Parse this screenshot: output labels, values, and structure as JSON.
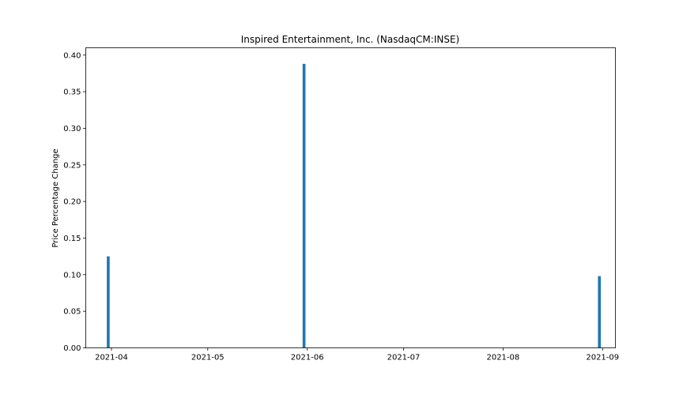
{
  "chart_data": {
    "type": "bar",
    "title": "Inspired Entertainment, Inc. (NasdaqCM:INSE)",
    "xlabel": "",
    "ylabel": "Price Percentage Change",
    "x_axis_type": "date",
    "xlim": [
      "2021-03-24",
      "2021-09-05"
    ],
    "x_ticks": [
      "2021-04-01",
      "2021-05-01",
      "2021-06-01",
      "2021-07-01",
      "2021-08-01",
      "2021-09-01"
    ],
    "x_tick_labels": [
      "2021-04",
      "2021-05",
      "2021-06",
      "2021-07",
      "2021-08",
      "2021-09"
    ],
    "ylim": [
      0,
      0.41
    ],
    "y_ticks": [
      0.0,
      0.05,
      0.1,
      0.15,
      0.2,
      0.25,
      0.3,
      0.35,
      0.4
    ],
    "y_tick_labels": [
      "0.00",
      "0.05",
      "0.10",
      "0.15",
      "0.20",
      "0.25",
      "0.30",
      "0.35",
      "0.40"
    ],
    "series": [
      {
        "x": [
          "2021-03-31",
          "2021-05-31",
          "2021-08-31"
        ],
        "values": [
          0.125,
          0.388,
          0.098
        ]
      }
    ],
    "bar_color": "#1f77b4",
    "grid": false,
    "legend": "none"
  }
}
